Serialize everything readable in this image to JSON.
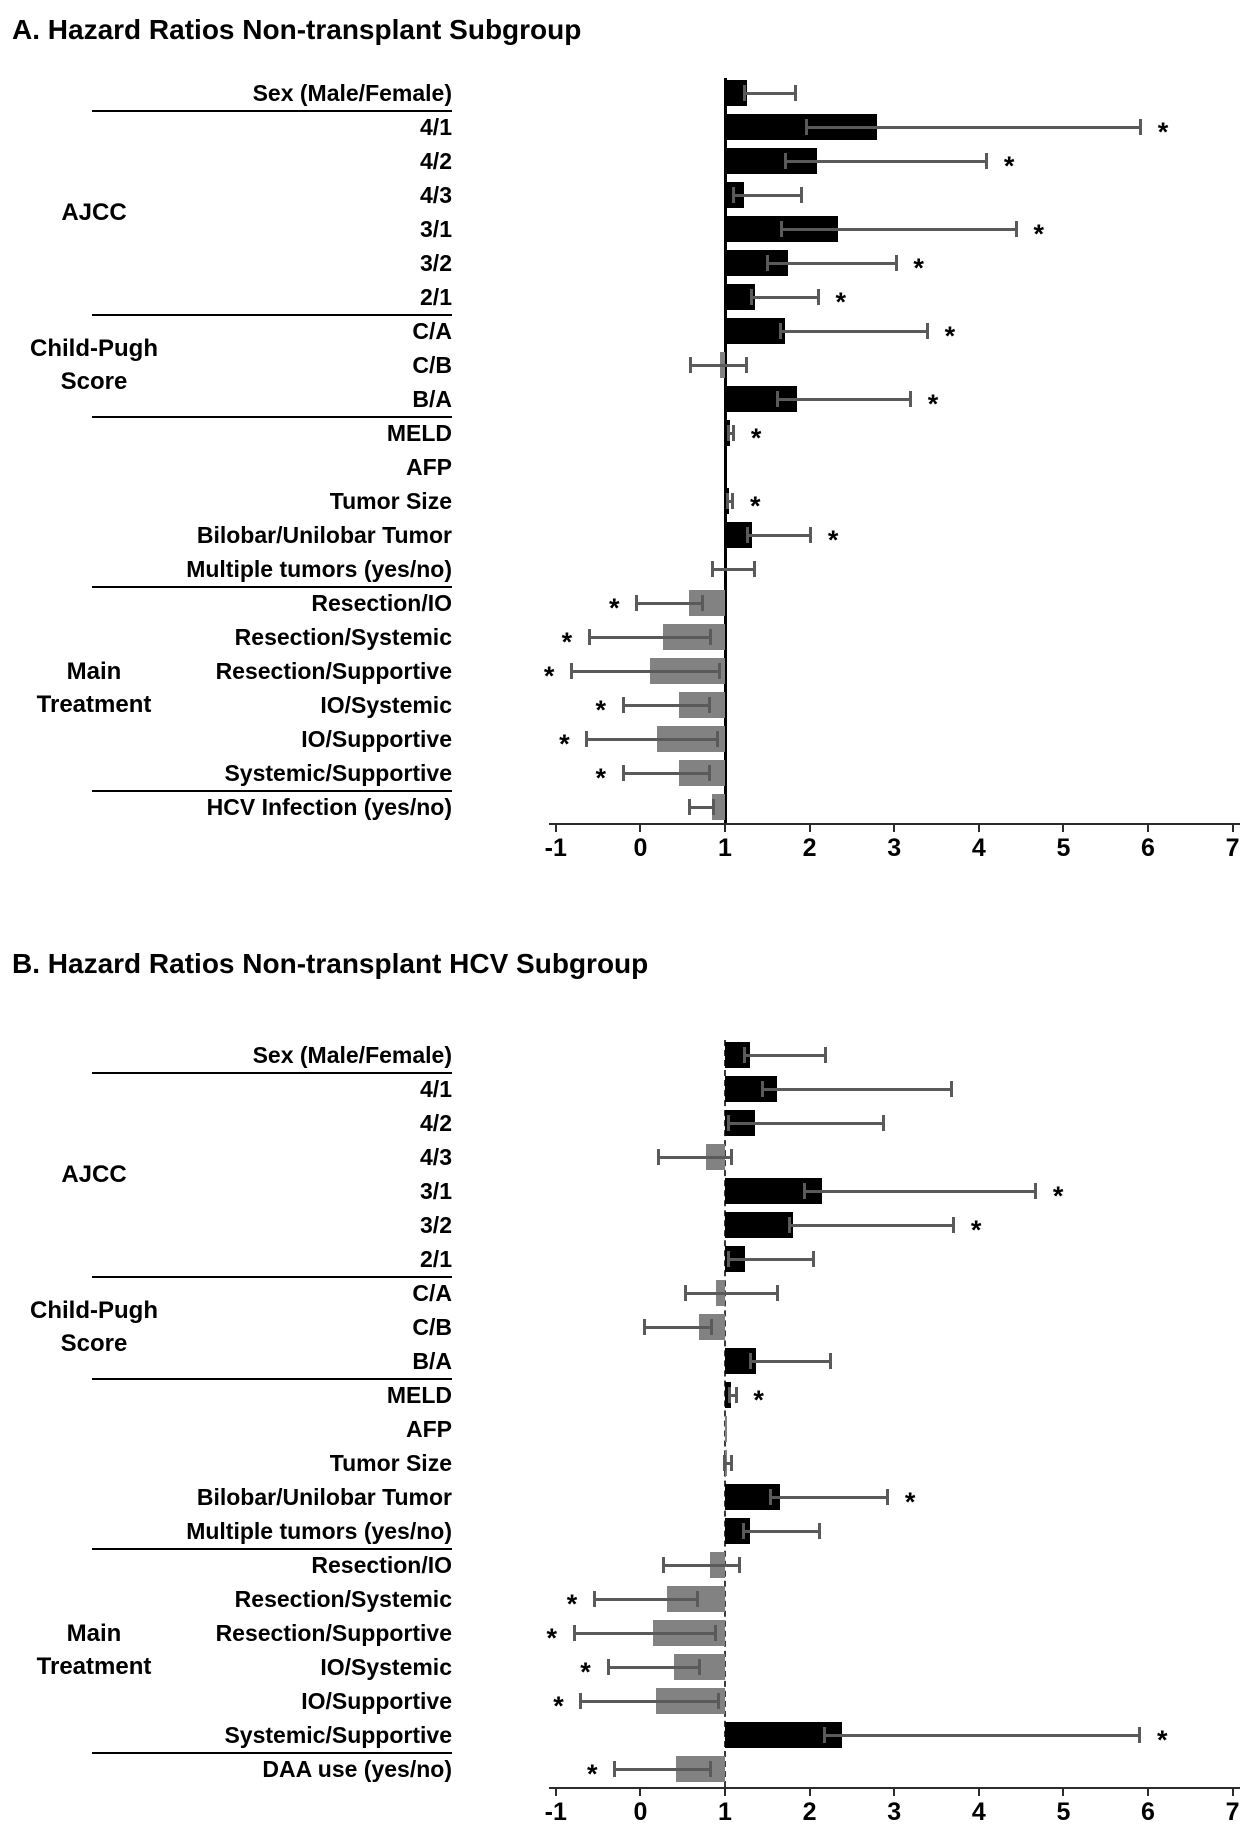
{
  "figure_title": "Hazard Ratio Forest Bar Charts",
  "colors": {
    "bar_high": "#000000",
    "bar_low": "#828282",
    "error": "#5a5a5a",
    "axis": "#2b2b2b",
    "background": "#ffffff"
  },
  "chart_data": [
    {
      "type": "bar",
      "orientation": "horizontal",
      "panel": "A",
      "title": "A. Hazard Ratios Non-transplant Subgroup",
      "xlabel": "",
      "ylabel": "",
      "xlim": [
        -1,
        7
      ],
      "baseline_value": 1,
      "tick_labels": [
        "-1",
        "0",
        "1",
        "2",
        "3",
        "4",
        "5",
        "6",
        "7"
      ],
      "tick_values": [
        -1,
        0,
        1,
        2,
        3,
        4,
        5,
        6,
        7
      ],
      "grid": false,
      "legend": "none",
      "groups": [
        {
          "lines": [
            "AJCC"
          ],
          "first_row": 1,
          "last_row": 6
        },
        {
          "lines": [
            "Child-Pugh",
            "Score"
          ],
          "first_row": 7,
          "last_row": 9
        },
        {
          "lines": [
            "Main",
            "Treatment"
          ],
          "first_row": 15,
          "last_row": 20
        }
      ],
      "separators_after_rows": [
        0,
        6,
        9,
        14,
        20
      ],
      "rows": [
        {
          "label": "Sex (Male/Female)",
          "value": 1.26,
          "color": "black",
          "err_low": 1.21,
          "err_high": 1.85,
          "star": null
        },
        {
          "label": "4/1",
          "value": 2.8,
          "color": "black",
          "err_low": 1.95,
          "err_high": 5.93,
          "star": "right"
        },
        {
          "label": "4/2",
          "value": 2.09,
          "color": "black",
          "err_low": 1.7,
          "err_high": 4.11,
          "star": "right"
        },
        {
          "label": "4/3",
          "value": 1.22,
          "color": "black",
          "err_low": 1.08,
          "err_high": 1.92,
          "star": null
        },
        {
          "label": "3/1",
          "value": 2.33,
          "color": "black",
          "err_low": 1.65,
          "err_high": 4.46,
          "star": "right"
        },
        {
          "label": "3/2",
          "value": 1.74,
          "color": "black",
          "err_low": 1.49,
          "err_high": 3.04,
          "star": "right"
        },
        {
          "label": "2/1",
          "value": 1.36,
          "color": "black",
          "err_low": 1.3,
          "err_high": 2.12,
          "star": "right"
        },
        {
          "label": "C/A",
          "value": 1.71,
          "color": "black",
          "err_low": 1.64,
          "err_high": 3.41,
          "star": "right"
        },
        {
          "label": "C/B",
          "value": 0.94,
          "color": "gray",
          "err_low": 0.57,
          "err_high": 1.27,
          "star": null
        },
        {
          "label": "B/A",
          "value": 1.85,
          "color": "black",
          "err_low": 1.6,
          "err_high": 3.21,
          "star": "right"
        },
        {
          "label": "MELD",
          "value": 1.06,
          "color": "black",
          "err_low": 1.02,
          "err_high": 1.12,
          "star": "right"
        },
        {
          "label": "AFP",
          "value": 1.0,
          "color": "black",
          "err_low": null,
          "err_high": null,
          "star": null
        },
        {
          "label": "Tumor Size",
          "value": 1.05,
          "color": "black",
          "err_low": 1.01,
          "err_high": 1.11,
          "star": "right"
        },
        {
          "label": "Bilobar/Unilobar Tumor",
          "value": 1.32,
          "color": "black",
          "err_low": 1.25,
          "err_high": 2.03,
          "star": "right"
        },
        {
          "label": "Multiple tumors (yes/no)",
          "value": 1.01,
          "color": "black",
          "err_low": 0.83,
          "err_high": 1.37,
          "star": null
        },
        {
          "label": "Resection/IO",
          "value": 0.57,
          "color": "gray",
          "err_low": -0.06,
          "err_high": 0.75,
          "star": "left"
        },
        {
          "label": "Resection/Systemic",
          "value": 0.27,
          "color": "gray",
          "err_low": -0.62,
          "err_high": 0.85,
          "star": "left"
        },
        {
          "label": "Resection/Supportive",
          "value": 0.11,
          "color": "gray",
          "err_low": -0.83,
          "err_high": 0.95,
          "star": "left"
        },
        {
          "label": "IO/Systemic",
          "value": 0.46,
          "color": "gray",
          "err_low": -0.22,
          "err_high": 0.83,
          "star": "left"
        },
        {
          "label": "IO/Supportive",
          "value": 0.2,
          "color": "gray",
          "err_low": -0.65,
          "err_high": 0.93,
          "star": "left"
        },
        {
          "label": "Systemic/Supportive",
          "value": 0.46,
          "color": "gray",
          "err_low": -0.22,
          "err_high": 0.83,
          "star": "left"
        },
        {
          "label": "HCV Infection (yes/no)",
          "value": 0.85,
          "color": "gray",
          "err_low": 0.56,
          "err_high": 0.88,
          "star": null
        }
      ]
    },
    {
      "type": "bar",
      "orientation": "horizontal",
      "panel": "B",
      "title": "B. Hazard Ratios Non-transplant HCV Subgroup",
      "xlabel": "",
      "ylabel": "",
      "xlim": [
        -1,
        7
      ],
      "baseline_value": 1,
      "tick_labels": [
        "-1",
        "0",
        "1",
        "2",
        "3",
        "4",
        "5",
        "6",
        "7"
      ],
      "tick_values": [
        -1,
        0,
        1,
        2,
        3,
        4,
        5,
        6,
        7
      ],
      "grid": false,
      "legend": "none",
      "groups": [
        {
          "lines": [
            "AJCC"
          ],
          "first_row": 1,
          "last_row": 6
        },
        {
          "lines": [
            "Child-Pugh",
            "Score"
          ],
          "first_row": 7,
          "last_row": 9
        },
        {
          "lines": [
            "Main",
            "Treatment"
          ],
          "first_row": 15,
          "last_row": 20
        }
      ],
      "separators_after_rows": [
        0,
        6,
        9,
        14,
        20
      ],
      "rows": [
        {
          "label": "Sex (Male/Female)",
          "value": 1.3,
          "color": "black",
          "err_low": 1.21,
          "err_high": 2.21,
          "star": null
        },
        {
          "label": "4/1",
          "value": 1.62,
          "color": "black",
          "err_low": 1.43,
          "err_high": 3.7,
          "star": null
        },
        {
          "label": "4/2",
          "value": 1.35,
          "color": "black",
          "err_low": 1.02,
          "err_high": 2.89,
          "star": null
        },
        {
          "label": "4/3",
          "value": 0.78,
          "color": "gray",
          "err_low": 0.2,
          "err_high": 1.1,
          "star": null
        },
        {
          "label": "3/1",
          "value": 2.15,
          "color": "black",
          "err_low": 1.92,
          "err_high": 4.69,
          "star": "right"
        },
        {
          "label": "3/2",
          "value": 1.8,
          "color": "black",
          "err_low": 1.74,
          "err_high": 3.72,
          "star": "right"
        },
        {
          "label": "2/1",
          "value": 1.24,
          "color": "black",
          "err_low": 1.02,
          "err_high": 2.06,
          "star": null
        },
        {
          "label": "C/A",
          "value": 0.89,
          "color": "gray",
          "err_low": 0.52,
          "err_high": 1.64,
          "star": null
        },
        {
          "label": "C/B",
          "value": 0.69,
          "color": "gray",
          "err_low": 0.03,
          "err_high": 0.86,
          "star": null
        },
        {
          "label": "B/A",
          "value": 1.37,
          "color": "black",
          "err_low": 1.28,
          "err_high": 2.26,
          "star": null
        },
        {
          "label": "MELD",
          "value": 1.07,
          "color": "black",
          "err_low": 1.03,
          "err_high": 1.15,
          "star": "right"
        },
        {
          "label": "AFP",
          "value": 1.0,
          "color": "gray",
          "err_low": null,
          "err_high": null,
          "star": null
        },
        {
          "label": "Tumor Size",
          "value": 1.01,
          "color": "gray",
          "err_low": 0.98,
          "err_high": 1.09,
          "star": null
        },
        {
          "label": "Bilobar/Unilobar Tumor",
          "value": 1.65,
          "color": "black",
          "err_low": 1.52,
          "err_high": 2.94,
          "star": "right"
        },
        {
          "label": "Multiple tumors (yes/no)",
          "value": 1.3,
          "color": "black",
          "err_low": 1.2,
          "err_high": 2.14,
          "star": null
        },
        {
          "label": "Resection/IO",
          "value": 0.82,
          "color": "gray",
          "err_low": 0.25,
          "err_high": 1.19,
          "star": null
        },
        {
          "label": "Resection/Systemic",
          "value": 0.32,
          "color": "gray",
          "err_low": -0.56,
          "err_high": 0.69,
          "star": "left"
        },
        {
          "label": "Resection/Supportive",
          "value": 0.15,
          "color": "gray",
          "err_low": -0.8,
          "err_high": 0.91,
          "star": "left"
        },
        {
          "label": "IO/Systemic",
          "value": 0.4,
          "color": "gray",
          "err_low": -0.4,
          "err_high": 0.72,
          "star": "left"
        },
        {
          "label": "IO/Supportive",
          "value": 0.19,
          "color": "gray",
          "err_low": -0.72,
          "err_high": 0.94,
          "star": "left"
        },
        {
          "label": "Systemic/Supportive",
          "value": 2.38,
          "color": "black",
          "err_low": 2.16,
          "err_high": 5.92,
          "star": "right"
        },
        {
          "label": "DAA use (yes/no)",
          "value": 0.42,
          "color": "gray",
          "err_low": -0.32,
          "err_high": 0.85,
          "star": "left"
        }
      ]
    }
  ]
}
